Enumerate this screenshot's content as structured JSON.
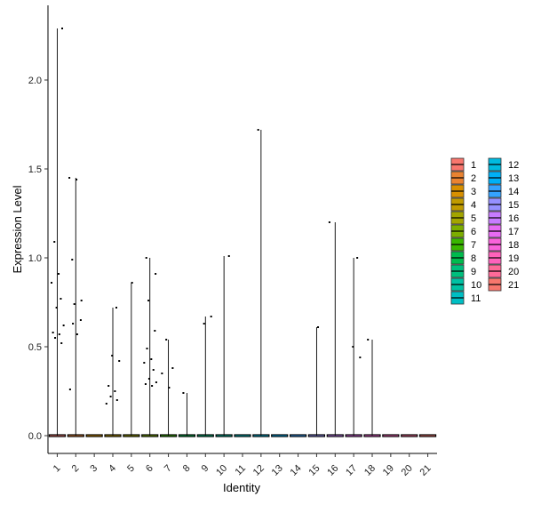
{
  "chart_data": {
    "type": "violin",
    "xlabel": "Identity",
    "ylabel": "Expression Level",
    "ylim": [
      -0.1,
      2.42
    ],
    "yticks": [
      "0.0",
      "0.5",
      "1.0",
      "1.5",
      "2.0"
    ],
    "ytick_values": [
      0,
      0.5,
      1,
      1.5,
      2
    ],
    "categories": [
      "1",
      "2",
      "3",
      "4",
      "5",
      "6",
      "7",
      "8",
      "9",
      "10",
      "11",
      "12",
      "13",
      "14",
      "15",
      "16",
      "17",
      "18",
      "19",
      "20",
      "21"
    ],
    "colors": [
      "#F8766D",
      "#EA8331",
      "#D89000",
      "#C09B00",
      "#A3A500",
      "#7CAE00",
      "#39B600",
      "#00BB4E",
      "#00BF7D",
      "#00C1A3",
      "#00BFC4",
      "#00BAE0",
      "#00B0F6",
      "#35A2FF",
      "#9590FF",
      "#C77CFF",
      "#E76BF3",
      "#FA62DB",
      "#FF62BC",
      "#FF6A98",
      "#F8766D"
    ],
    "max_values": [
      2.29,
      1.45,
      0,
      0.72,
      0.86,
      1.0,
      0.54,
      0.24,
      0.67,
      1.01,
      0,
      1.72,
      0,
      0,
      0.61,
      1.2,
      1.0,
      0.54,
      0,
      0,
      0
    ],
    "points": [
      {
        "g": 1,
        "y": 2.29
      },
      {
        "g": 1,
        "y": 1.09
      },
      {
        "g": 1,
        "y": 0.91
      },
      {
        "g": 1,
        "y": 0.86
      },
      {
        "g": 1,
        "y": 0.77
      },
      {
        "g": 1,
        "y": 0.72
      },
      {
        "g": 1,
        "y": 0.62
      },
      {
        "g": 1,
        "y": 0.58
      },
      {
        "g": 1,
        "y": 0.57
      },
      {
        "g": 1,
        "y": 0.55
      },
      {
        "g": 1,
        "y": 0.52
      },
      {
        "g": 2,
        "y": 1.45
      },
      {
        "g": 2,
        "y": 1.44
      },
      {
        "g": 2,
        "y": 0.99
      },
      {
        "g": 2,
        "y": 0.76
      },
      {
        "g": 2,
        "y": 0.74
      },
      {
        "g": 2,
        "y": 0.65
      },
      {
        "g": 2,
        "y": 0.63
      },
      {
        "g": 2,
        "y": 0.57
      },
      {
        "g": 2,
        "y": 0.26
      },
      {
        "g": 4,
        "y": 0.72
      },
      {
        "g": 4,
        "y": 0.45
      },
      {
        "g": 4,
        "y": 0.42
      },
      {
        "g": 4,
        "y": 0.28
      },
      {
        "g": 4,
        "y": 0.25
      },
      {
        "g": 4,
        "y": 0.22
      },
      {
        "g": 4,
        "y": 0.2
      },
      {
        "g": 4,
        "y": 0.18
      },
      {
        "g": 5,
        "y": 0.86
      },
      {
        "g": 6,
        "y": 1.0
      },
      {
        "g": 6,
        "y": 0.91
      },
      {
        "g": 6,
        "y": 0.76
      },
      {
        "g": 6,
        "y": 0.59
      },
      {
        "g": 6,
        "y": 0.49
      },
      {
        "g": 6,
        "y": 0.43
      },
      {
        "g": 6,
        "y": 0.41
      },
      {
        "g": 6,
        "y": 0.37
      },
      {
        "g": 6,
        "y": 0.32
      },
      {
        "g": 6,
        "y": 0.3
      },
      {
        "g": 6,
        "y": 0.29
      },
      {
        "g": 6,
        "y": 0.28
      },
      {
        "g": 7,
        "y": 0.54
      },
      {
        "g": 7,
        "y": 0.38
      },
      {
        "g": 7,
        "y": 0.35
      },
      {
        "g": 7,
        "y": 0.27
      },
      {
        "g": 8,
        "y": 0.24
      },
      {
        "g": 9,
        "y": 0.67
      },
      {
        "g": 9,
        "y": 0.63
      },
      {
        "g": 10,
        "y": 1.01
      },
      {
        "g": 12,
        "y": 1.72
      },
      {
        "g": 15,
        "y": 0.61
      },
      {
        "g": 16,
        "y": 1.2
      },
      {
        "g": 17,
        "y": 1.0
      },
      {
        "g": 17,
        "y": 0.5
      },
      {
        "g": 17,
        "y": 0.44
      },
      {
        "g": 18,
        "y": 0.54
      }
    ],
    "legend": {
      "columns": [
        [
          "1",
          "2",
          "3",
          "4",
          "5",
          "6",
          "7",
          "8",
          "9",
          "10",
          "11"
        ],
        [
          "12",
          "13",
          "14",
          "15",
          "16",
          "17",
          "18",
          "19",
          "20",
          "21"
        ]
      ]
    }
  }
}
